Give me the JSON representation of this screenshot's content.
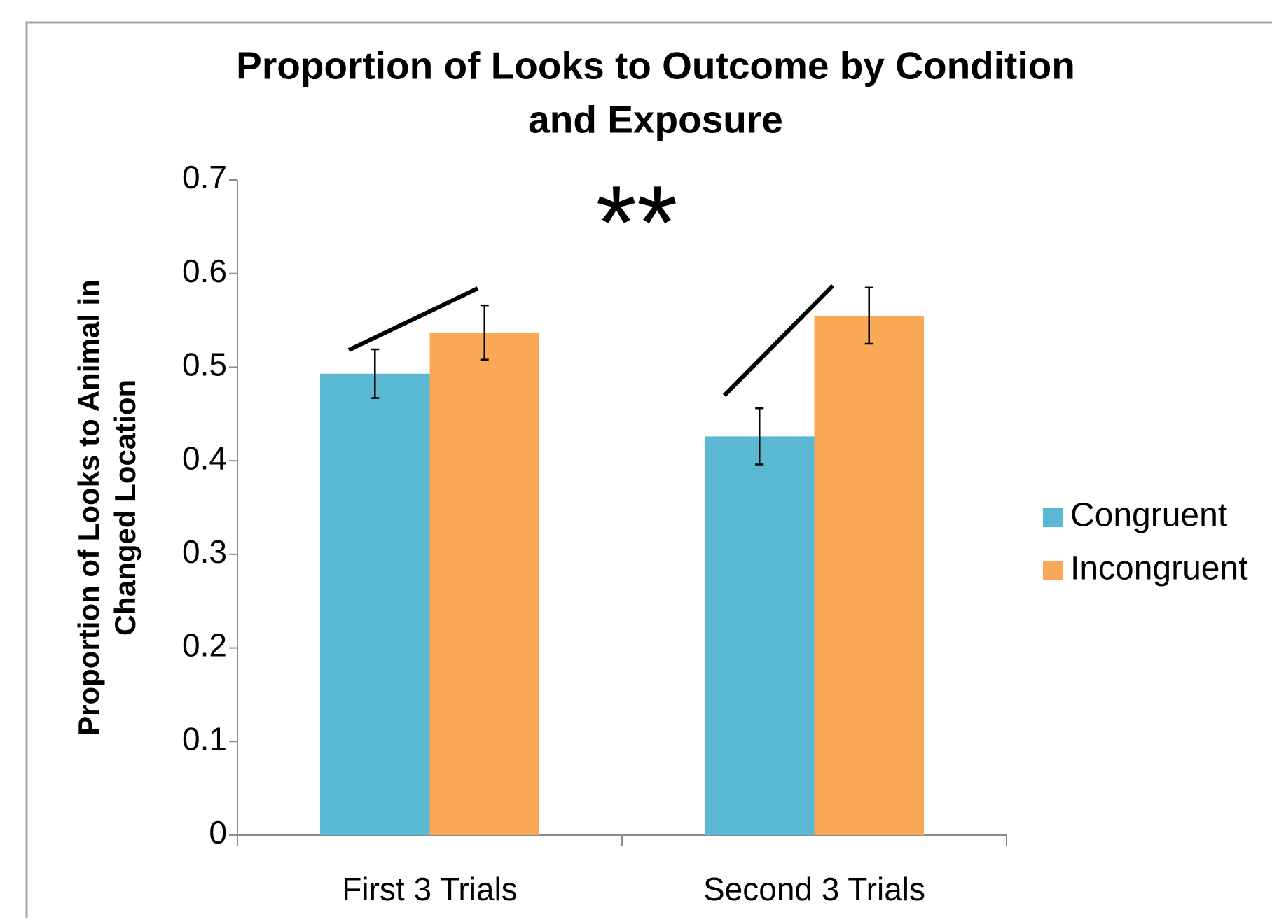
{
  "chart_data": {
    "type": "bar",
    "title": [
      "Proportion of Looks to Outcome by Condition",
      "and Exposure"
    ],
    "y_label": [
      "Proportion of Looks to Animal in",
      "Changed Location"
    ],
    "annotation": "**",
    "categories": [
      "First 3 Trials",
      "Second 3 Trials"
    ],
    "series": [
      {
        "name": "Congruent",
        "color": "#5bb8d2",
        "values": [
          0.493,
          0.426
        ],
        "errors": [
          0.026,
          0.03
        ]
      },
      {
        "name": "Incongruent",
        "color": "#f8a857",
        "values": [
          0.537,
          0.555
        ],
        "errors": [
          0.029,
          0.03
        ]
      }
    ],
    "ylim": [
      0,
      0.7
    ],
    "yticks": [
      0,
      0.1,
      0.2,
      0.3,
      0.4,
      0.5,
      0.6,
      0.7
    ],
    "grid": false,
    "legend": "right"
  }
}
